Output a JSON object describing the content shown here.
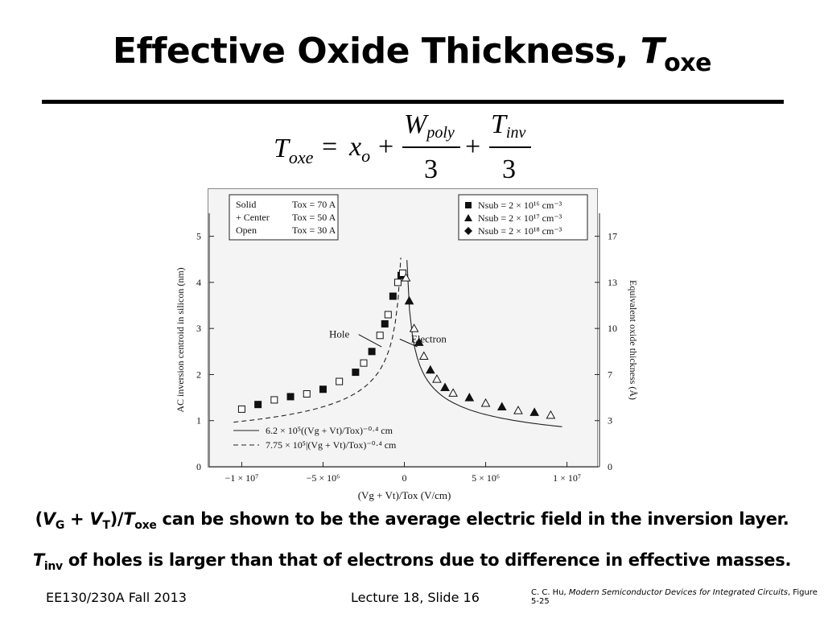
{
  "slide": {
    "title_main": "Effective Oxide Thickness, ",
    "title_var": "T",
    "title_sub": "oxe",
    "equation": {
      "lhs_var": "T",
      "lhs_sub": "oxe",
      "eq_sign": "=",
      "term1_var": "x",
      "term1_sub": "o",
      "plus": "+",
      "frac1_num_var": "W",
      "frac1_num_sub": "poly",
      "frac1_den": "3",
      "frac2_num_var": "T",
      "frac2_num_sub": "inv",
      "frac2_den": "3"
    },
    "note1": {
      "p1": "(",
      "vg": "V",
      "vg_sub": "G",
      "plus": " + ",
      "vt": "V",
      "vt_sub": "T",
      "p2": ")/",
      "t": "T",
      "t_sub": "oxe",
      "rest": " can be shown to be the average electric field in the inversion layer."
    },
    "note2": {
      "t": "T",
      "t_sub": "inv",
      "rest": " of holes is larger than that of electrons due to difference in effective masses."
    },
    "footer_left": "EE130/230A Fall 2013",
    "footer_center": "Lecture 18, Slide 16",
    "citation": {
      "author": "C. C. Hu, ",
      "book": "Modern Semiconductor Devices for Integrated Circuits",
      "figure": ", Figure 5-25"
    }
  },
  "chart_data": {
    "type": "scatter",
    "xlabel": "(Vg + Vt)/Tox (V/cm)",
    "ylabel": "AC inversion centroid in silicon (nm)",
    "y2label": "Equivalent oxide thickness (Å)",
    "xlim": [
      -12000000,
      12000000
    ],
    "ylim": [
      0,
      5.5
    ],
    "x_ticks": [
      -10000000,
      -5000000,
      0,
      5000000,
      10000000
    ],
    "x_tick_labels": [
      "−1 × 10⁷",
      "−5 × 10⁶",
      "0",
      "5 × 10⁶",
      "1 × 10⁷"
    ],
    "y_ticks": [
      0,
      1,
      2,
      3,
      4,
      5
    ],
    "y_tick_labels": [
      "0",
      "1",
      "2",
      "3",
      "4",
      "5"
    ],
    "y2_ticks": [
      0,
      1,
      2,
      3,
      4,
      5
    ],
    "y2_tick_labels": [
      "0",
      "3",
      "7",
      "10",
      "13",
      "17"
    ],
    "legend_tox": [
      {
        "marker": "Solid",
        "label": "Tox = 70 A"
      },
      {
        "marker": "+ Center",
        "label": "Tox = 50 A"
      },
      {
        "marker": "Open",
        "label": "Tox = 30 A"
      }
    ],
    "legend_nsub": [
      {
        "symbol": "square",
        "label": "Nsub = 2 × 10¹⁶ cm⁻³"
      },
      {
        "symbol": "triangle",
        "label": "Nsub = 2 × 10¹⁷ cm⁻³"
      },
      {
        "symbol": "diamond",
        "label": "Nsub = 2 × 10¹⁸ cm⁻³"
      }
    ],
    "legend_fits": [
      {
        "style": "solid",
        "label": "6.2 × 10⁵((Vg + Vt)/Tox)⁻⁰·⁴ cm"
      },
      {
        "style": "dashed",
        "label": "7.75 × 10⁵|(Vg + Vt)/Tox)⁻⁰·⁴ cm"
      }
    ],
    "annotations": [
      {
        "text": "Hole",
        "x": -4000000,
        "y": 2.8
      },
      {
        "text": "Electron",
        "x": 1500000,
        "y": 2.7
      }
    ],
    "series": [
      {
        "name": "Hole",
        "marker": "square",
        "x": [
          -10000000,
          -9000000,
          -8000000,
          -7000000,
          -6000000,
          -5000000,
          -4000000,
          -3000000,
          -2500000,
          -2000000,
          -1500000,
          -1200000,
          -1000000,
          -700000,
          -400000,
          -200000,
          -100000
        ],
        "y": [
          1.25,
          1.35,
          1.45,
          1.52,
          1.58,
          1.68,
          1.85,
          2.05,
          2.25,
          2.5,
          2.85,
          3.1,
          3.3,
          3.7,
          4.0,
          4.15,
          4.2
        ]
      },
      {
        "name": "Electron",
        "marker": "triangle",
        "x": [
          100000,
          300000,
          600000,
          900000,
          1200000,
          1600000,
          2000000,
          2500000,
          3000000,
          4000000,
          5000000,
          6000000,
          7000000,
          8000000,
          9000000
        ],
        "y": [
          4.1,
          3.6,
          3.0,
          2.7,
          2.4,
          2.1,
          1.9,
          1.72,
          1.6,
          1.5,
          1.38,
          1.3,
          1.22,
          1.18,
          1.12
        ]
      }
    ]
  }
}
